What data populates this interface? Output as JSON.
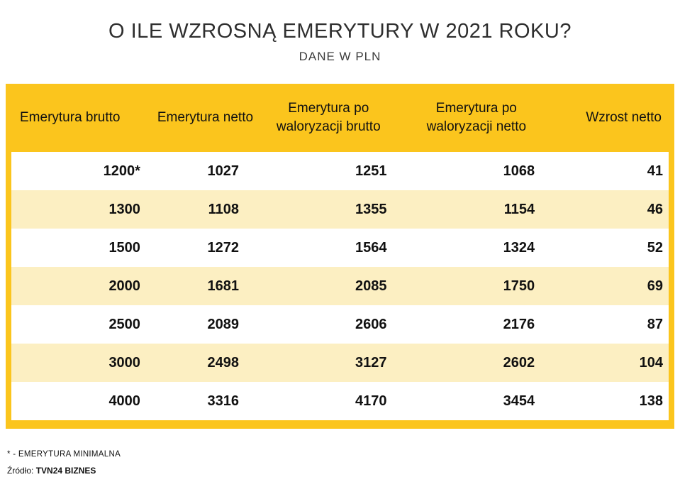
{
  "page": {
    "title": "O ILE WZROSNĄ EMERYTURY W 2021 ROKU?",
    "subtitle": "DANE W PLN"
  },
  "chart_data": {
    "type": "table",
    "title": "O ILE WZROSNĄ EMERYTURY W 2021 ROKU?",
    "subtitle": "DANE W PLN",
    "columns": [
      "Emerytura brutto",
      "Emerytura netto",
      "Emerytura po waloryzacji brutto",
      "Emerytura po waloryzacji netto",
      "Wzrost netto"
    ],
    "rows": [
      [
        "1200*",
        "1027",
        "1251",
        "1068",
        "41"
      ],
      [
        "1300",
        "1108",
        "1355",
        "1154",
        "46"
      ],
      [
        "1500",
        "1272",
        "1564",
        "1324",
        "52"
      ],
      [
        "2000",
        "1681",
        "2085",
        "1750",
        "69"
      ],
      [
        "2500",
        "2089",
        "2606",
        "2176",
        "87"
      ],
      [
        "3000",
        "2498",
        "3127",
        "2602",
        "104"
      ],
      [
        "4000",
        "3316",
        "4170",
        "3454",
        "138"
      ]
    ],
    "footnote": "* - EMERYTURA MINIMALNA",
    "source_label": "Źródło:",
    "source_value": "TVN24 BIZNES",
    "colors": {
      "header_bg": "#FBC51D",
      "row_bg": "#FFFFFF",
      "row_alt_bg": "#FCEFC2",
      "border": "#FBC51D",
      "text": "#111111"
    }
  }
}
